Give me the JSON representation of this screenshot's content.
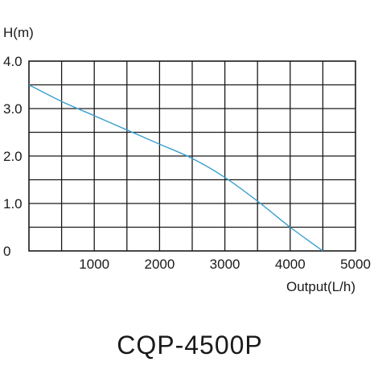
{
  "chart_data": {
    "type": "line",
    "title": "CQP-4500P",
    "xlabel": "Output(L/h)",
    "ylabel": "H(m)",
    "xlim": [
      0,
      5000
    ],
    "ylim": [
      0,
      4
    ],
    "x_ticks": [
      1000,
      2000,
      3000,
      4000,
      5000
    ],
    "x_tick_labels": [
      "1000",
      "2000",
      "3000",
      "4000",
      "5000"
    ],
    "y_ticks": [
      0,
      1,
      2,
      3,
      4
    ],
    "y_tick_labels": [
      "0",
      "1.0",
      "2.0",
      "3.0",
      "4.0"
    ],
    "grid": true,
    "grid_x_step": 500,
    "grid_y_step": 0.5,
    "series": [
      {
        "color": "#3a9fcf",
        "x": [
          0,
          500,
          1000,
          1500,
          2000,
          2500,
          3000,
          3500,
          4000,
          4500
        ],
        "y": [
          3.5,
          3.15,
          2.85,
          2.55,
          2.25,
          1.95,
          1.55,
          1.05,
          0.5,
          0
        ]
      }
    ]
  }
}
